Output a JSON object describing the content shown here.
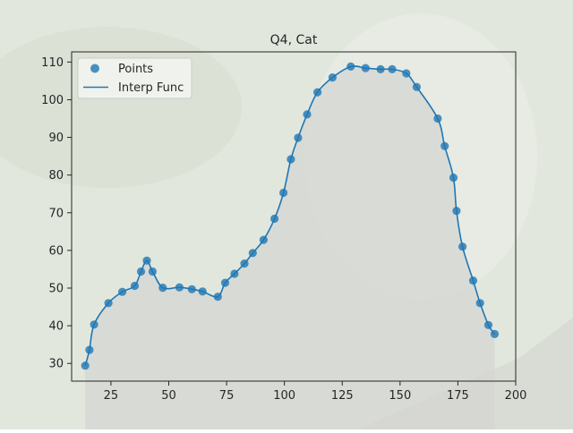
{
  "chart_data": {
    "type": "scatter",
    "title": "Q4, Cat",
    "xlabel": "",
    "ylabel": "",
    "xlim": [
      8,
      200
    ],
    "ylim": [
      25.3,
      112.7
    ],
    "xticks": [
      25,
      50,
      75,
      100,
      125,
      150,
      175,
      200
    ],
    "yticks": [
      30,
      40,
      50,
      60,
      70,
      80,
      90,
      100,
      110
    ],
    "grid": false,
    "legend": {
      "position": "top-left",
      "entries": [
        "Points",
        "Interp Func"
      ]
    },
    "colors": {
      "series": "#1f77b4",
      "frame": "#262626",
      "background_tint": "#e2e7dd"
    },
    "series": [
      {
        "name": "Points",
        "kind": "scatter",
        "x": [
          13.9,
          15.7,
          17.7,
          23.9,
          29.9,
          35.3,
          38.0,
          40.5,
          43.0,
          47.4,
          54.6,
          60.0,
          64.6,
          71.2,
          74.4,
          78.4,
          82.7,
          86.3,
          91.0,
          95.7,
          99.6,
          102.8,
          105.9,
          109.8,
          114.3,
          120.8,
          128.7,
          135.1,
          141.6,
          146.6,
          152.7,
          157.2,
          166.3,
          169.3,
          173.1,
          174.4,
          177.0,
          181.6,
          184.6,
          188.2,
          190.9
        ],
        "y": [
          29.4,
          33.6,
          40.3,
          46.0,
          49.0,
          50.6,
          54.4,
          57.3,
          54.4,
          50.1,
          50.2,
          49.7,
          49.1,
          47.7,
          51.4,
          53.8,
          56.5,
          59.3,
          62.8,
          68.4,
          75.3,
          84.2,
          89.9,
          96.1,
          102.0,
          105.9,
          108.8,
          108.4,
          108.1,
          108.1,
          107.0,
          103.4,
          95.0,
          87.7,
          79.3,
          70.5,
          61.0,
          52.0,
          46.0,
          40.2,
          37.8
        ]
      },
      {
        "name": "Interp Func",
        "kind": "line"
      }
    ]
  }
}
